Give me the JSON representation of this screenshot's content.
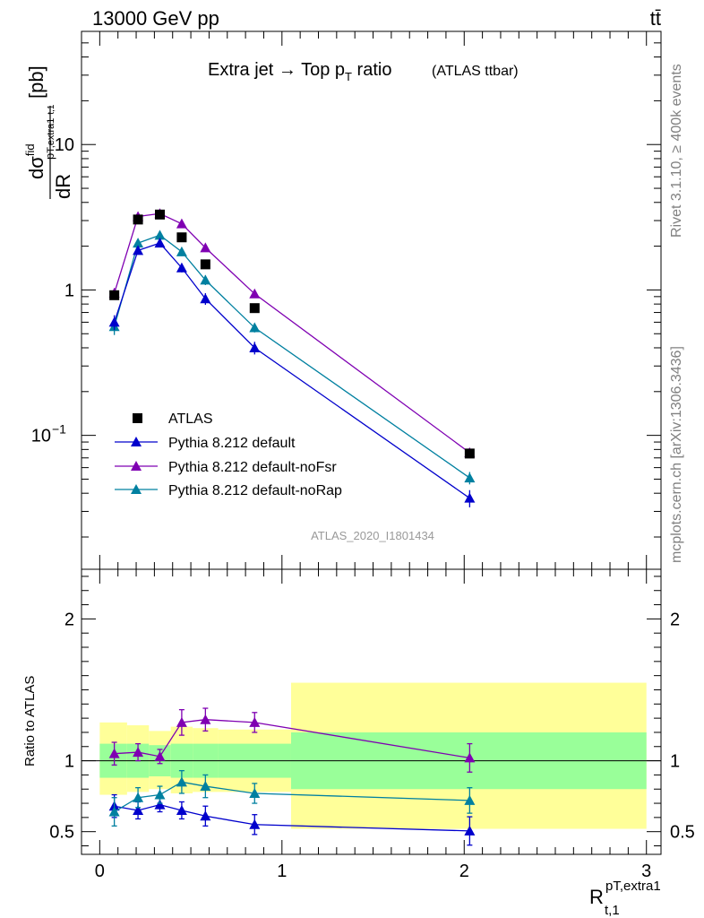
{
  "header": {
    "energy_label": "13000 GeV pp",
    "process_label": "tt̄",
    "side_rivet": "Rivet 3.1.10, ≥ 400k events",
    "side_mcplots": "mcplots.cern.ch [arXiv:1306.3436]",
    "analysis_id": "ATLAS_2020_I1801434"
  },
  "colors": {
    "data": "#000000",
    "default": "#0000cc",
    "noFsr": "#7f00b2",
    "noRap": "#0080a0",
    "band_outer": "#ffff99",
    "band_inner": "#99ff99"
  },
  "chart_data": [
    {
      "type": "line",
      "panel": "main",
      "title_main": "Extra jet → Top p",
      "title_sub": "T",
      "title_tail": " ratio",
      "title_note": "(ATLAS ttbar)",
      "ylabel": "dσ/dR [pb]",
      "ylabel_parts": {
        "d": "d",
        "sigma": "σ",
        "sup": "fid",
        "sub": "p",
        "sub2": "T,extra1",
        "sub3": "t,1",
        "den": "dR",
        "unit": "[pb]"
      },
      "yscale": "log",
      "ylim": [
        0.012,
        60
      ],
      "xlim": [
        -0.1,
        3.08
      ],
      "ytick_labels": [
        {
          "value": 10,
          "label": "10"
        },
        {
          "value": 1,
          "label": "1"
        },
        {
          "value": 0.1,
          "label": "10",
          "exp": "−1"
        }
      ],
      "x": [
        0.08,
        0.21,
        0.33,
        0.45,
        0.58,
        0.85,
        2.03
      ],
      "series": [
        {
          "name": "ATLAS",
          "kind": "data",
          "values": [
            0.92,
            3.05,
            3.3,
            2.3,
            1.5,
            0.75,
            0.075
          ]
        },
        {
          "name": "Pythia 8.212 default",
          "kind": "mc",
          "values": [
            0.6,
            1.87,
            2.1,
            1.42,
            0.87,
            0.4,
            0.037
          ],
          "err": [
            0.07,
            0.12,
            0.12,
            0.1,
            0.08,
            0.04,
            0.005
          ]
        },
        {
          "name": "Pythia 8.212 default-noFsr",
          "kind": "mc",
          "values": [
            0.95,
            3.2,
            3.35,
            2.85,
            1.95,
            0.94,
            0.076
          ],
          "err": [
            0.08,
            0.15,
            0.16,
            0.14,
            0.1,
            0.05,
            0.006
          ]
        },
        {
          "name": "Pythia 8.212 default-noRap",
          "kind": "mc",
          "values": [
            0.56,
            2.1,
            2.38,
            1.83,
            1.17,
            0.55,
            0.051
          ],
          "err": [
            0.07,
            0.13,
            0.13,
            0.12,
            0.09,
            0.04,
            0.005
          ]
        }
      ],
      "legend_position": "lower-left"
    },
    {
      "type": "line",
      "panel": "ratio",
      "ylabel": "Ratio to ATLAS",
      "xlabel": "R",
      "xlabel_sup": "pT,extra1",
      "xlabel_sub": "t,1",
      "ylim": [
        0.34,
        2.35
      ],
      "xlim": [
        -0.1,
        3.08
      ],
      "yticks": [
        0.5,
        1,
        2
      ],
      "ytick_labels": [
        "0.5",
        "1",
        "2"
      ],
      "xticks": [
        0,
        1,
        2,
        3
      ],
      "xtick_labels": [
        "0",
        "1",
        "2",
        "3"
      ],
      "bands": [
        {
          "x0": 0.0,
          "x1": 0.15,
          "outer": [
            0.76,
            1.27
          ],
          "inner": [
            0.88,
            1.12
          ]
        },
        {
          "x0": 0.15,
          "x1": 0.27,
          "outer": [
            0.78,
            1.25
          ],
          "inner": [
            0.88,
            1.12
          ]
        },
        {
          "x0": 0.27,
          "x1": 0.39,
          "outer": [
            0.8,
            1.21
          ],
          "inner": [
            0.89,
            1.11
          ]
        },
        {
          "x0": 0.39,
          "x1": 0.51,
          "outer": [
            0.77,
            1.24
          ],
          "inner": [
            0.88,
            1.12
          ]
        },
        {
          "x0": 0.51,
          "x1": 0.65,
          "outer": [
            0.78,
            1.23
          ],
          "inner": [
            0.88,
            1.12
          ]
        },
        {
          "x0": 0.65,
          "x1": 1.05,
          "outer": [
            0.78,
            1.22
          ],
          "inner": [
            0.88,
            1.12
          ]
        },
        {
          "x0": 1.05,
          "x1": 3.0,
          "outer": [
            0.52,
            1.55
          ],
          "inner": [
            0.8,
            1.2
          ]
        }
      ],
      "x": [
        0.08,
        0.21,
        0.33,
        0.45,
        0.58,
        0.85,
        2.03
      ],
      "series": [
        {
          "name": "Pythia 8.212 default",
          "values": [
            0.68,
            0.65,
            0.69,
            0.65,
            0.61,
            0.55,
            0.505
          ],
          "err": [
            0.08,
            0.06,
            0.05,
            0.06,
            0.07,
            0.07,
            0.1
          ]
        },
        {
          "name": "Pythia 8.212 default-noFsr",
          "values": [
            1.05,
            1.06,
            1.03,
            1.27,
            1.29,
            1.27,
            1.02
          ],
          "err": [
            0.08,
            0.06,
            0.05,
            0.09,
            0.08,
            0.07,
            0.1
          ]
        },
        {
          "name": "Pythia 8.212 default-noRap",
          "values": [
            0.64,
            0.74,
            0.76,
            0.85,
            0.82,
            0.77,
            0.72
          ],
          "err": [
            0.1,
            0.07,
            0.06,
            0.08,
            0.08,
            0.07,
            0.09
          ]
        }
      ]
    }
  ]
}
